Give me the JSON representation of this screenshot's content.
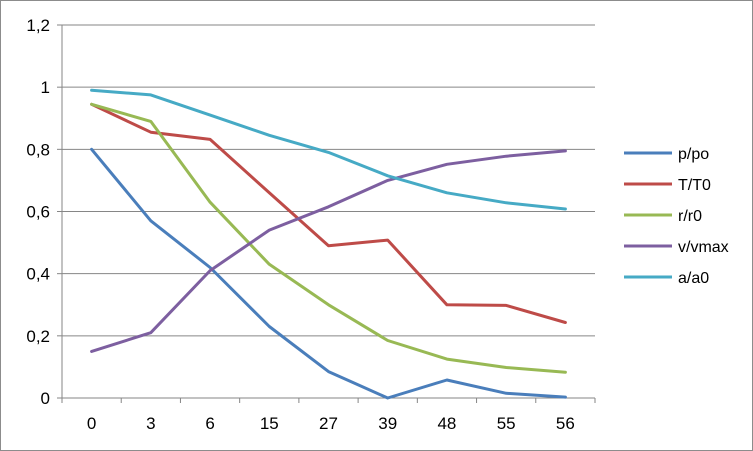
{
  "chart_data": {
    "type": "line",
    "title": "",
    "xlabel": "",
    "ylabel": "",
    "categories": [
      "0",
      "3",
      "6",
      "15",
      "27",
      "39",
      "48",
      "55",
      "56"
    ],
    "ylim": [
      0,
      1.2
    ],
    "ytick_labels": [
      "0",
      "0,2",
      "0,4",
      "0,6",
      "0,8",
      "1",
      "1,2"
    ],
    "grid": "horizontal",
    "legend_position": "right",
    "series": [
      {
        "name": "p/po",
        "color": "#4a7ebb",
        "values": [
          0.8,
          0.57,
          0.42,
          0.23,
          0.085,
          0.0,
          0.058,
          0.015,
          0.003
        ]
      },
      {
        "name": "T/T0",
        "color": "#be4b48",
        "values": [
          0.945,
          0.855,
          0.832,
          0.66,
          0.49,
          0.508,
          0.3,
          0.298,
          0.243
        ]
      },
      {
        "name": "r/r0",
        "color": "#98b954",
        "values": [
          0.945,
          0.89,
          0.63,
          0.43,
          0.3,
          0.185,
          0.125,
          0.098,
          0.083
        ]
      },
      {
        "name": "v/vmax",
        "color": "#7d5fa0",
        "values": [
          0.15,
          0.21,
          0.41,
          0.54,
          0.615,
          0.7,
          0.752,
          0.778,
          0.795
        ]
      },
      {
        "name": "a/a0",
        "color": "#46aac5",
        "values": [
          0.99,
          0.975,
          0.91,
          0.845,
          0.79,
          0.715,
          0.66,
          0.628,
          0.608
        ]
      }
    ]
  }
}
